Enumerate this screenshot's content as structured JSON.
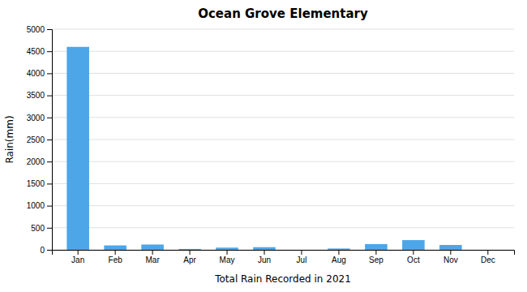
{
  "chart_data": {
    "type": "bar",
    "title": "Ocean Grove Elementary",
    "xlabel": "Total Rain Recorded in 2021",
    "ylabel": "Rain(mm)",
    "categories": [
      "Jan",
      "Feb",
      "Mar",
      "Apr",
      "May",
      "Jun",
      "Jul",
      "Aug",
      "Sep",
      "Oct",
      "Nov",
      "Dec"
    ],
    "values": [
      4600,
      100,
      120,
      20,
      50,
      60,
      0,
      30,
      130,
      220,
      110,
      0
    ],
    "color": "#4da6e8",
    "ylim": [
      0,
      5000
    ],
    "yticks": [
      0,
      500,
      1000,
      1500,
      2000,
      2500,
      3000,
      3500,
      4000,
      4500,
      5000
    ],
    "grid": true
  }
}
